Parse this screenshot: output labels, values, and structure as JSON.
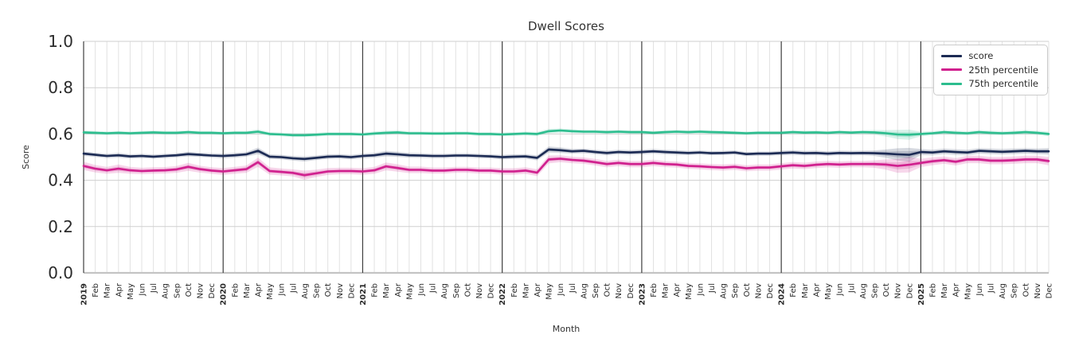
{
  "chart_data": {
    "type": "line",
    "title": "Dwell Scores",
    "xlabel": "Month",
    "ylabel": "Score",
    "ylim": [
      0.0,
      1.0
    ],
    "yticklabels": [
      "0.0",
      "0.2",
      "0.4",
      "0.6",
      "0.8",
      "1.0"
    ],
    "grid": true,
    "legend_position": "upper right",
    "x_tick_labels": [
      "2019",
      "Feb",
      "Mar",
      "Apr",
      "May",
      "Jun",
      "Jul",
      "Aug",
      "Sep",
      "Oct",
      "Nov",
      "Dec",
      "2020",
      "Feb",
      "Mar",
      "Apr",
      "May",
      "Jun",
      "Jul",
      "Aug",
      "Sep",
      "Oct",
      "Nov",
      "Dec",
      "2021",
      "Feb",
      "Mar",
      "Apr",
      "May",
      "Jun",
      "Jul",
      "Aug",
      "Sep",
      "Oct",
      "Nov",
      "Dec",
      "2022",
      "Feb",
      "Mar",
      "Apr",
      "May",
      "Jun",
      "Jul",
      "Aug",
      "Sep",
      "Oct",
      "Nov",
      "Dec",
      "2023",
      "Feb",
      "Mar",
      "Apr",
      "May",
      "Jun",
      "Jul",
      "Aug",
      "Sep",
      "Oct",
      "Nov",
      "Dec",
      "2024",
      "Feb",
      "Mar",
      "Apr",
      "May",
      "Jun",
      "Jul",
      "Aug",
      "Sep",
      "Oct",
      "Nov",
      "Dec",
      "2025",
      "Feb",
      "Mar",
      "Apr",
      "May",
      "Jun",
      "Jul",
      "Aug",
      "Sep",
      "Oct",
      "Nov",
      "Dec"
    ],
    "year_start_indices": [
      0,
      12,
      24,
      36,
      48,
      60,
      72
    ],
    "series": [
      {
        "name": "score",
        "color": "#1c2b54",
        "values": [
          0.515,
          0.51,
          0.505,
          0.508,
          0.503,
          0.505,
          0.502,
          0.505,
          0.508,
          0.513,
          0.51,
          0.507,
          0.505,
          0.508,
          0.512,
          0.527,
          0.502,
          0.5,
          0.495,
          0.492,
          0.497,
          0.502,
          0.503,
          0.5,
          0.505,
          0.508,
          0.515,
          0.512,
          0.508,
          0.507,
          0.505,
          0.505,
          0.507,
          0.507,
          0.505,
          0.503,
          0.5,
          0.502,
          0.503,
          0.497,
          0.533,
          0.53,
          0.525,
          0.527,
          0.522,
          0.518,
          0.522,
          0.52,
          0.522,
          0.525,
          0.522,
          0.52,
          0.518,
          0.52,
          0.517,
          0.518,
          0.52,
          0.513,
          0.515,
          0.515,
          0.518,
          0.52,
          0.517,
          0.518,
          0.515,
          0.518,
          0.517,
          0.518,
          0.517,
          0.515,
          0.512,
          0.51,
          0.522,
          0.52,
          0.525,
          0.522,
          0.52,
          0.527,
          0.525,
          0.523,
          0.525,
          0.527,
          0.525,
          0.525
        ],
        "band": [
          0.01,
          0.009,
          0.009,
          0.01,
          0.009,
          0.009,
          0.009,
          0.009,
          0.009,
          0.01,
          0.009,
          0.009,
          0.01,
          0.01,
          0.01,
          0.014,
          0.01,
          0.01,
          0.01,
          0.011,
          0.01,
          0.01,
          0.01,
          0.01,
          0.01,
          0.01,
          0.012,
          0.011,
          0.01,
          0.01,
          0.009,
          0.009,
          0.009,
          0.009,
          0.009,
          0.009,
          0.01,
          0.01,
          0.01,
          0.011,
          0.013,
          0.012,
          0.01,
          0.01,
          0.01,
          0.01,
          0.01,
          0.01,
          0.01,
          0.01,
          0.01,
          0.01,
          0.009,
          0.009,
          0.009,
          0.009,
          0.009,
          0.009,
          0.009,
          0.009,
          0.01,
          0.01,
          0.01,
          0.01,
          0.01,
          0.01,
          0.01,
          0.01,
          0.012,
          0.018,
          0.026,
          0.03,
          0.013,
          0.012,
          0.012,
          0.012,
          0.012,
          0.012,
          0.012,
          0.012,
          0.012,
          0.012,
          0.012,
          0.014
        ]
      },
      {
        "name": "25th percentile",
        "color": "#d0208e",
        "values": [
          0.462,
          0.45,
          0.443,
          0.45,
          0.443,
          0.44,
          0.442,
          0.443,
          0.447,
          0.458,
          0.448,
          0.442,
          0.438,
          0.443,
          0.448,
          0.478,
          0.44,
          0.436,
          0.432,
          0.422,
          0.43,
          0.438,
          0.44,
          0.44,
          0.438,
          0.443,
          0.46,
          0.453,
          0.445,
          0.445,
          0.442,
          0.442,
          0.445,
          0.445,
          0.442,
          0.442,
          0.438,
          0.438,
          0.442,
          0.433,
          0.49,
          0.493,
          0.488,
          0.485,
          0.478,
          0.47,
          0.475,
          0.47,
          0.47,
          0.475,
          0.47,
          0.468,
          0.462,
          0.46,
          0.457,
          0.455,
          0.458,
          0.452,
          0.455,
          0.455,
          0.46,
          0.465,
          0.462,
          0.467,
          0.47,
          0.468,
          0.47,
          0.47,
          0.47,
          0.468,
          0.462,
          0.467,
          0.475,
          0.482,
          0.487,
          0.48,
          0.49,
          0.49,
          0.485,
          0.485,
          0.487,
          0.49,
          0.49,
          0.483
        ],
        "band": [
          0.018,
          0.016,
          0.015,
          0.018,
          0.015,
          0.014,
          0.014,
          0.014,
          0.015,
          0.017,
          0.015,
          0.014,
          0.015,
          0.015,
          0.016,
          0.02,
          0.016,
          0.015,
          0.015,
          0.02,
          0.016,
          0.015,
          0.014,
          0.014,
          0.014,
          0.015,
          0.017,
          0.016,
          0.014,
          0.014,
          0.013,
          0.013,
          0.013,
          0.013,
          0.013,
          0.013,
          0.014,
          0.014,
          0.014,
          0.015,
          0.017,
          0.015,
          0.014,
          0.014,
          0.014,
          0.014,
          0.014,
          0.014,
          0.014,
          0.014,
          0.013,
          0.013,
          0.013,
          0.013,
          0.013,
          0.013,
          0.013,
          0.013,
          0.013,
          0.013,
          0.014,
          0.014,
          0.014,
          0.014,
          0.014,
          0.014,
          0.014,
          0.014,
          0.016,
          0.022,
          0.03,
          0.033,
          0.018,
          0.017,
          0.016,
          0.016,
          0.016,
          0.016,
          0.016,
          0.016,
          0.016,
          0.016,
          0.016,
          0.018
        ]
      },
      {
        "name": "75th percentile",
        "color": "#2cbd8e",
        "values": [
          0.607,
          0.605,
          0.603,
          0.605,
          0.603,
          0.605,
          0.607,
          0.605,
          0.605,
          0.608,
          0.605,
          0.605,
          0.603,
          0.605,
          0.605,
          0.61,
          0.6,
          0.598,
          0.595,
          0.595,
          0.597,
          0.6,
          0.6,
          0.6,
          0.598,
          0.602,
          0.605,
          0.607,
          0.603,
          0.603,
          0.602,
          0.602,
          0.603,
          0.603,
          0.6,
          0.6,
          0.598,
          0.6,
          0.602,
          0.6,
          0.612,
          0.615,
          0.612,
          0.61,
          0.61,
          0.608,
          0.61,
          0.608,
          0.608,
          0.605,
          0.608,
          0.61,
          0.608,
          0.61,
          0.608,
          0.607,
          0.605,
          0.603,
          0.605,
          0.605,
          0.605,
          0.608,
          0.606,
          0.607,
          0.605,
          0.608,
          0.606,
          0.608,
          0.607,
          0.603,
          0.598,
          0.597,
          0.6,
          0.603,
          0.608,
          0.605,
          0.603,
          0.608,
          0.605,
          0.603,
          0.605,
          0.608,
          0.605,
          0.6
        ],
        "band": [
          0.008,
          0.008,
          0.008,
          0.008,
          0.008,
          0.008,
          0.008,
          0.008,
          0.008,
          0.008,
          0.008,
          0.008,
          0.008,
          0.008,
          0.008,
          0.01,
          0.008,
          0.008,
          0.008,
          0.008,
          0.008,
          0.008,
          0.008,
          0.008,
          0.008,
          0.009,
          0.009,
          0.009,
          0.008,
          0.008,
          0.008,
          0.008,
          0.008,
          0.008,
          0.008,
          0.008,
          0.008,
          0.008,
          0.008,
          0.009,
          0.01,
          0.009,
          0.008,
          0.008,
          0.008,
          0.008,
          0.008,
          0.008,
          0.008,
          0.008,
          0.008,
          0.008,
          0.008,
          0.008,
          0.008,
          0.008,
          0.008,
          0.008,
          0.008,
          0.008,
          0.008,
          0.008,
          0.008,
          0.008,
          0.008,
          0.008,
          0.008,
          0.008,
          0.01,
          0.014,
          0.02,
          0.022,
          0.01,
          0.009,
          0.009,
          0.009,
          0.009,
          0.009,
          0.009,
          0.009,
          0.009,
          0.009,
          0.009,
          0.01
        ]
      }
    ]
  }
}
